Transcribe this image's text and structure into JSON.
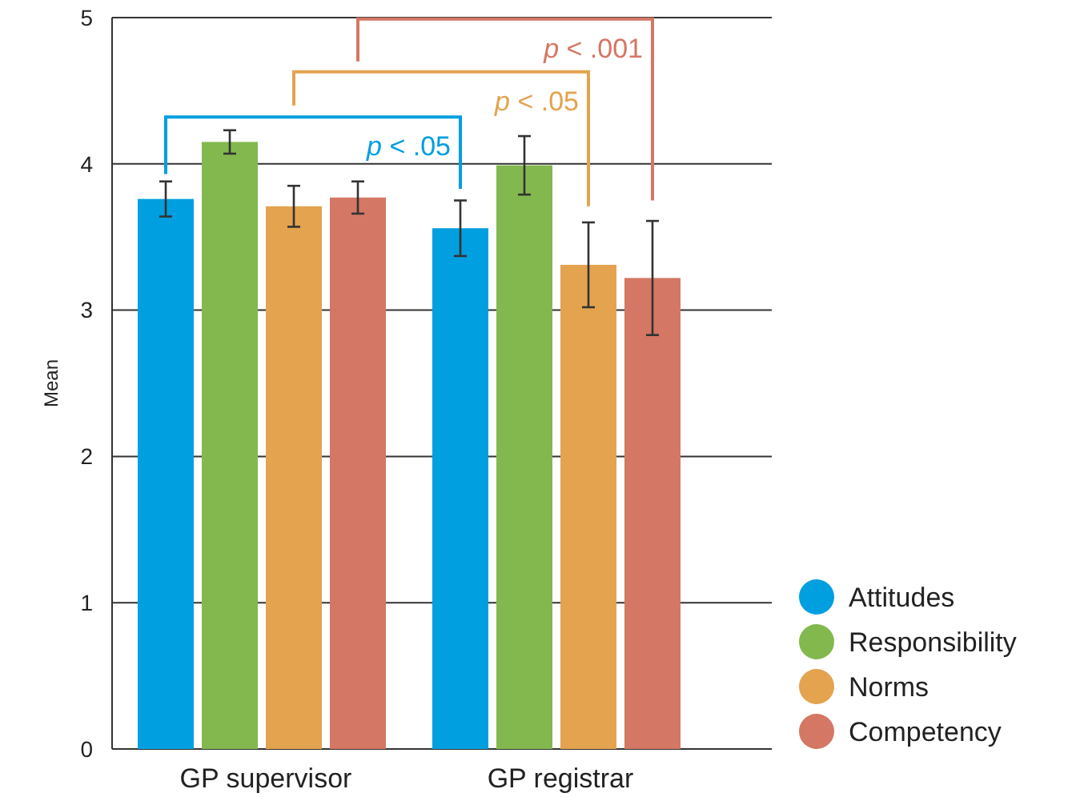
{
  "chart_data": {
    "type": "bar",
    "ylabel": "Mean",
    "categories": [
      "GP supervisor",
      "GP registrar"
    ],
    "series": [
      {
        "name": "Attitudes",
        "color": "#009fdf",
        "values": [
          3.76,
          3.56
        ],
        "errors": [
          0.12,
          0.19
        ]
      },
      {
        "name": "Responsibility",
        "color": "#83b84e",
        "values": [
          4.15,
          3.99
        ],
        "errors": [
          0.08,
          0.2
        ]
      },
      {
        "name": "Norms",
        "color": "#e3a34f",
        "values": [
          3.71,
          3.31
        ],
        "errors": [
          0.14,
          0.29
        ]
      },
      {
        "name": "Competency",
        "color": "#d47764",
        "values": [
          3.77,
          3.22
        ],
        "errors": [
          0.11,
          0.39
        ]
      }
    ],
    "ylim": [
      0,
      5
    ],
    "yticks": [
      0,
      1,
      2,
      3,
      4,
      5
    ],
    "grid": "y",
    "legend": "bottom right",
    "annotations": [
      "p < .05",
      "p < .05",
      "p < .001"
    ]
  }
}
